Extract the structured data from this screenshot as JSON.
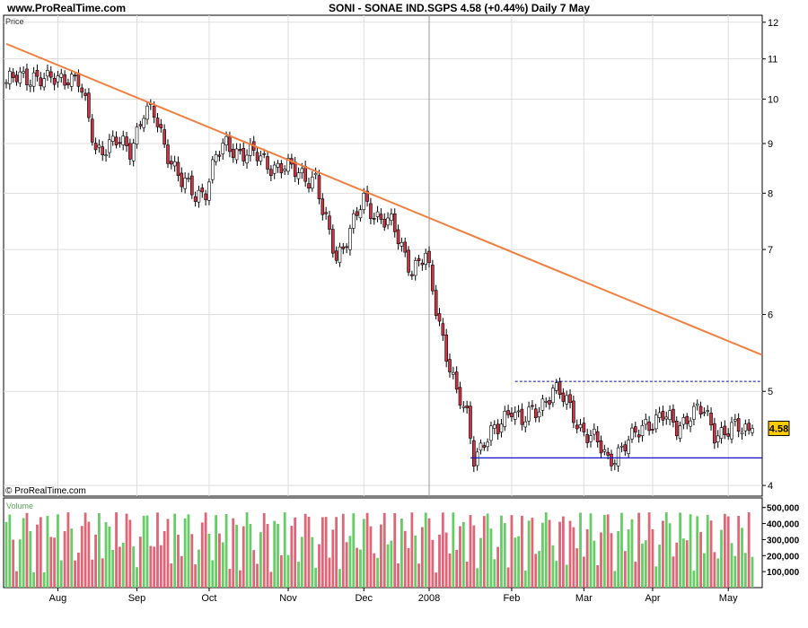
{
  "header": {
    "site": "www.ProRealTime.com",
    "title": "SONI - SONAE IND.SGPS    4.58 (+0.44%)    Daily  7 May"
  },
  "colors": {
    "up": "#22aa22",
    "down": "#cc3344",
    "trend": "#f08040",
    "support": "#1010c0",
    "resistance": "#1010a0",
    "badge": "#ffcc00",
    "vol_up": "#66cc66",
    "vol_down": "#dd6677"
  },
  "price_label": "Price",
  "copyright": "© ProRealTime.com",
  "volume_label": "Volume",
  "last_badge": "4.58",
  "y_ticks": [
    {
      "v": 4,
      "t": "4"
    },
    {
      "v": 5,
      "t": "5"
    },
    {
      "v": 6,
      "t": "6"
    },
    {
      "v": 7,
      "t": "7"
    },
    {
      "v": 8,
      "t": "8"
    },
    {
      "v": 9,
      "t": "9"
    },
    {
      "v": 10,
      "t": "10"
    },
    {
      "v": 11,
      "t": "11"
    },
    {
      "v": 12,
      "t": "12"
    }
  ],
  "vol_ticks": [
    {
      "v": 100000,
      "t": "100,000"
    },
    {
      "v": 200000,
      "t": "200,000"
    },
    {
      "v": 300000,
      "t": "300,000"
    },
    {
      "v": 400000,
      "t": "400,000"
    },
    {
      "v": 500000,
      "t": "500,000"
    }
  ],
  "x_ticks": [
    {
      "day": 15,
      "t": "Aug"
    },
    {
      "day": 38,
      "t": "Sep"
    },
    {
      "day": 59,
      "t": "Oct"
    },
    {
      "day": 82,
      "t": "Nov"
    },
    {
      "day": 104,
      "t": "Dec"
    },
    {
      "day": 123,
      "t": "2008"
    },
    {
      "day": 147,
      "t": "Feb"
    },
    {
      "day": 168,
      "t": "Mar"
    },
    {
      "day": 188,
      "t": "Apr"
    },
    {
      "day": 210,
      "t": "May"
    }
  ],
  "chart_data": {
    "type": "candlestick",
    "title": "SONI - SONAE IND.SGPS",
    "scale": "log",
    "ylim": [
      3.9,
      12.2
    ],
    "vol_max": 560000,
    "n_days": 218,
    "trendline": {
      "from": {
        "day": 0,
        "price": 11.4
      },
      "to": {
        "day": 217,
        "price": 5.45
      }
    },
    "resistance": {
      "from_day": 148,
      "to_day": 217,
      "price": 5.12
    },
    "support": {
      "from_day": 135,
      "to_day": 217,
      "price": 4.27
    },
    "divider_day": 123,
    "close_anchors": [
      [
        0,
        10.4
      ],
      [
        8,
        10.6
      ],
      [
        12,
        10.4
      ],
      [
        18,
        10.6
      ],
      [
        21,
        10.4
      ],
      [
        26,
        8.9
      ],
      [
        32,
        9.0
      ],
      [
        36,
        8.9
      ],
      [
        40,
        9.7
      ],
      [
        43,
        9.6
      ],
      [
        46,
        9.0
      ],
      [
        51,
        8.2
      ],
      [
        55,
        7.95
      ],
      [
        58,
        8.1
      ],
      [
        61,
        8.7
      ],
      [
        64,
        8.95
      ],
      [
        70,
        8.8
      ],
      [
        76,
        8.6
      ],
      [
        82,
        8.45
      ],
      [
        86,
        8.4
      ],
      [
        90,
        8.25
      ],
      [
        92,
        7.6
      ],
      [
        96,
        6.9
      ],
      [
        100,
        7.3
      ],
      [
        104,
        7.85
      ],
      [
        108,
        7.6
      ],
      [
        112,
        7.4
      ],
      [
        118,
        6.7
      ],
      [
        122,
        6.85
      ],
      [
        125,
        6.1
      ],
      [
        128,
        5.5
      ],
      [
        131,
        4.95
      ],
      [
        134,
        4.7
      ],
      [
        136,
        4.3
      ],
      [
        139,
        4.45
      ],
      [
        143,
        4.55
      ],
      [
        147,
        4.85
      ],
      [
        150,
        4.65
      ],
      [
        154,
        4.75
      ],
      [
        159,
        5.05
      ],
      [
        163,
        4.85
      ],
      [
        167,
        4.6
      ],
      [
        171,
        4.45
      ],
      [
        175,
        4.25
      ],
      [
        178,
        4.35
      ],
      [
        182,
        4.45
      ],
      [
        186,
        4.65
      ],
      [
        191,
        4.7
      ],
      [
        195,
        4.6
      ],
      [
        199,
        4.75
      ],
      [
        203,
        4.75
      ],
      [
        206,
        4.55
      ],
      [
        210,
        4.55
      ],
      [
        214,
        4.57
      ],
      [
        217,
        4.58
      ]
    ]
  }
}
